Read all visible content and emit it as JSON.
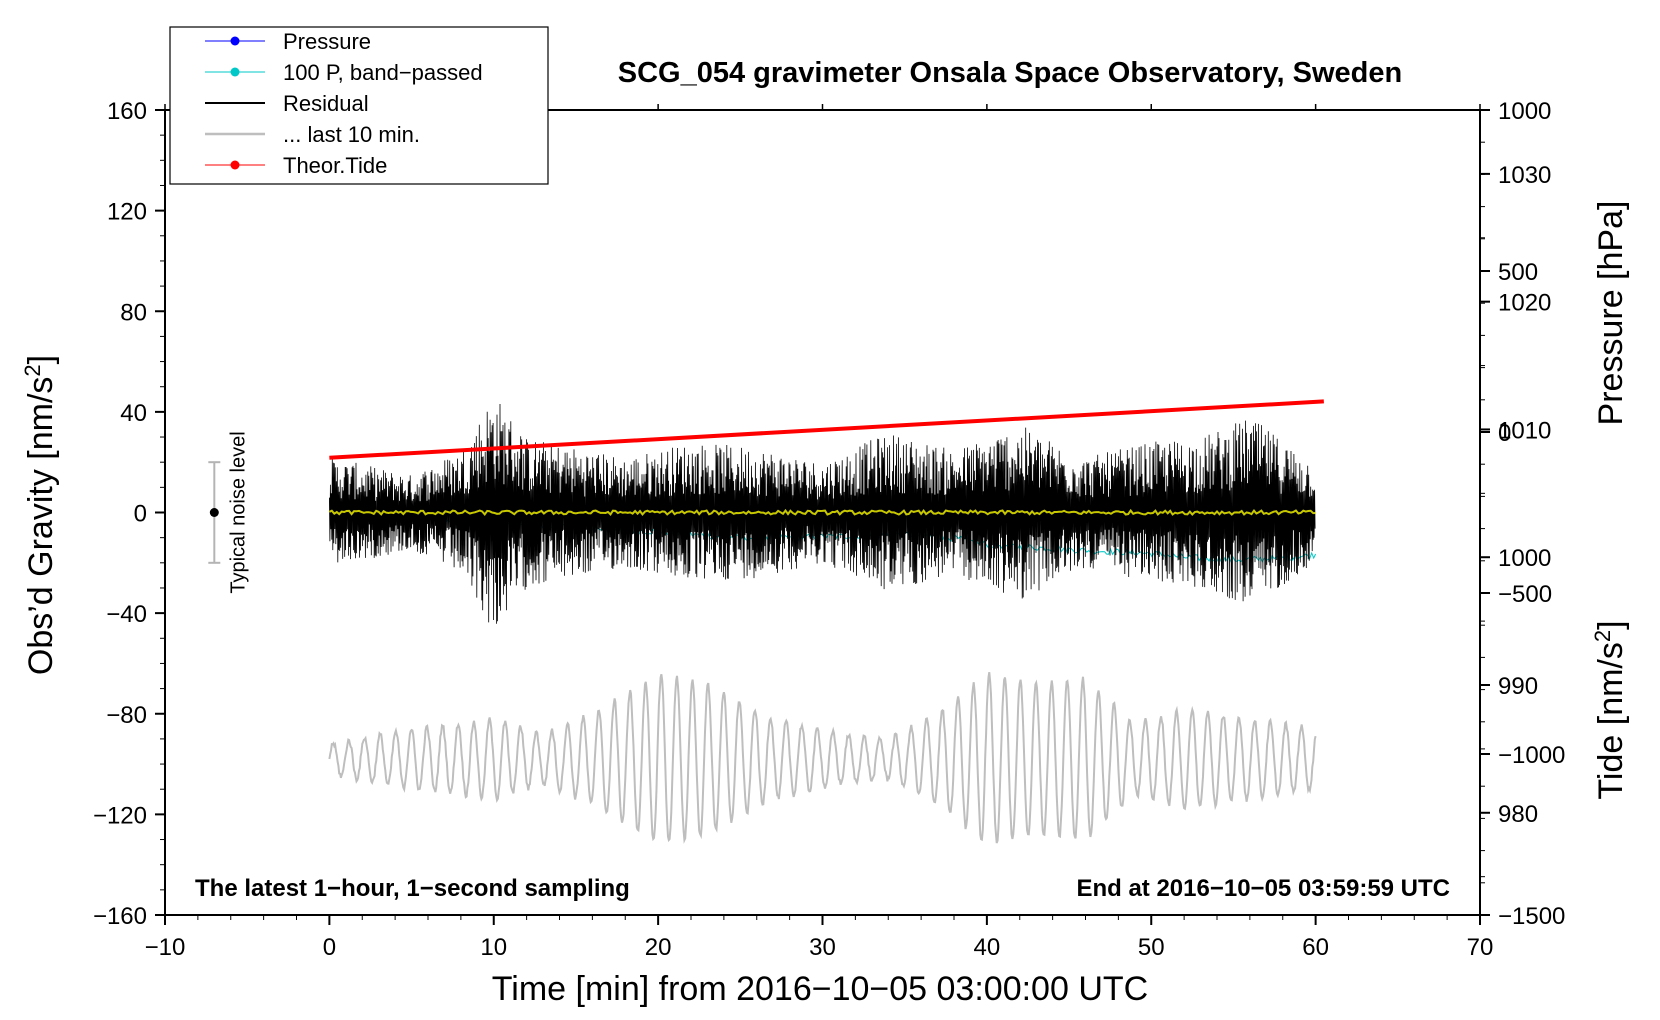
{
  "chart_data": {
    "type": "line",
    "title": "SCG_054 gravimeter Onsala Space Observatory, Sweden",
    "xlabel": "Time [min] from 2016−10−05 03:00:00 UTC",
    "ylabel": "Obs’d Gravity [nm/s²]",
    "ylabel_main": "Obs’d Gravity [nm/s",
    "ylabel_sup": "2",
    "ylabel_end": "]",
    "y2label": "Pressure [hPa]",
    "y3label": "Tide [nm/s²]",
    "y3label_main": "Tide [nm/s",
    "y3label_sup": "2",
    "y3label_end": "]",
    "xlim": [
      -10,
      70
    ],
    "ylim": [
      -160,
      160
    ],
    "pressure_axis_range": [
      972,
      1035
    ],
    "tide_axis_range": [
      -1500,
      1000
    ],
    "x_ticks": [
      "−10",
      "0",
      "10",
      "20",
      "30",
      "40",
      "50",
      "60",
      "70"
    ],
    "y_ticks": [
      "160",
      "120",
      "80",
      "40",
      "0",
      "−40",
      "−80",
      "−120",
      "−160"
    ],
    "pressure_ticks": [
      "1030",
      "1020",
      "1010",
      "1000",
      "990",
      "980"
    ],
    "tide_ticks": [
      "1000",
      "500",
      "0",
      "−500",
      "−1000",
      "−1500"
    ],
    "legend": [
      {
        "label": "Pressure",
        "color": "#0000ff",
        "marker": true
      },
      {
        "label": "100 P, band−passed",
        "color": "#00c8c8",
        "marker": true
      },
      {
        "label": "Residual",
        "color": "#000000",
        "marker": false
      },
      {
        "label": "... last 10 min.",
        "color": "#bebebe",
        "marker": false
      },
      {
        "label": "Theor.Tide",
        "color": "#ff0000",
        "marker": true
      }
    ],
    "legend_position": "top-left",
    "noise_level": {
      "label": "Typical noise level",
      "x": -7,
      "center": 0,
      "low": -20,
      "high": 20
    },
    "annotation_left": "The latest 1−hour, 1−second sampling",
    "annotation_right": "End at 2016−10−05 03:59:59 UTC",
    "series": [
      {
        "name": "Pressure (100 P, band-passed)",
        "axis": "pressure",
        "color": "#00c8c8",
        "x": [
          0,
          2,
          5,
          10,
          15,
          20,
          25,
          30,
          35,
          38,
          40,
          45,
          50,
          52,
          55,
          58,
          60
        ],
        "values": [
          1004.5,
          1004.0,
          1003.3,
          1002.6,
          1002.3,
          1002.0,
          1001.5,
          1001.6,
          1001.8,
          1001.5,
          1001.0,
          1000.6,
          1000.3,
          1000.0,
          999.8,
          999.9,
          1000.2
        ]
      },
      {
        "name": "Residual",
        "axis": "gravity",
        "color": "#000000",
        "x": [
          0,
          10,
          20,
          30,
          40,
          50,
          60
        ],
        "values": [
          0,
          0,
          0,
          0,
          0,
          0,
          0
        ],
        "envelope_x": [
          0,
          5,
          8,
          10,
          12,
          18,
          22,
          26,
          30,
          34,
          38,
          42,
          46,
          50,
          53,
          56,
          60
        ],
        "envelope_amp": [
          22,
          15,
          25,
          48,
          30,
          22,
          28,
          26,
          20,
          32,
          25,
          35,
          22,
          28,
          30,
          38,
          20
        ]
      },
      {
        "name": "Residual (smoothed)",
        "axis": "gravity",
        "color": "#c8c800",
        "x": [
          0,
          10,
          20,
          30,
          40,
          50,
          60
        ],
        "values": [
          0,
          0,
          0,
          0,
          0,
          0,
          0
        ]
      },
      {
        "name": "... last 10 min.",
        "axis": "gravity",
        "color": "#bebebe",
        "x": [
          0,
          5,
          10,
          15,
          19,
          23,
          27,
          32,
          36,
          40,
          45,
          48,
          52,
          56,
          60
        ],
        "center": -98,
        "envelope_x": [
          0,
          5,
          8,
          10,
          13,
          16,
          20,
          23,
          27,
          31,
          34,
          37,
          40,
          43,
          46,
          49,
          52,
          56,
          60
        ],
        "envelope_amp": [
          6,
          12,
          14,
          16,
          10,
          18,
          34,
          30,
          16,
          10,
          8,
          18,
          34,
          30,
          32,
          14,
          20,
          16,
          12
        ]
      },
      {
        "name": "Theor.Tide",
        "axis": "tide",
        "color": "#ff0000",
        "x": [
          0,
          60
        ],
        "values": [
          -80,
          95
        ]
      }
    ]
  }
}
